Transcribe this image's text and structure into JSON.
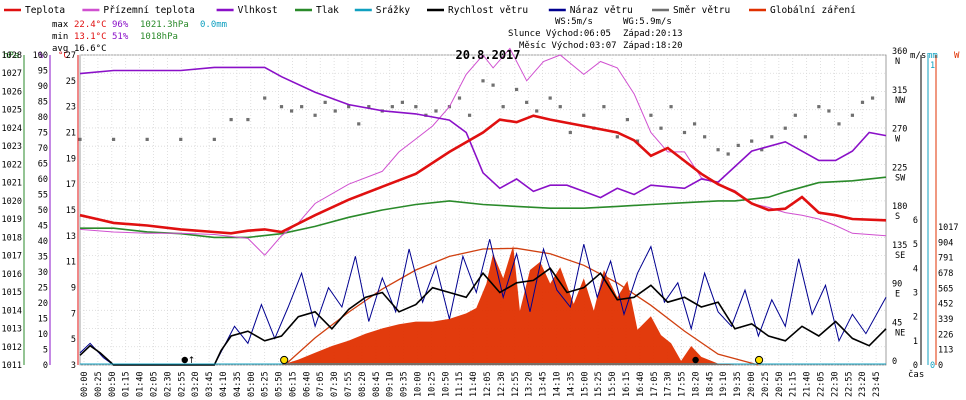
{
  "chart_data": {
    "type": "line",
    "title": "20.8.2017",
    "legend": [
      {
        "name": "Teplota",
        "color": "#e01010"
      },
      {
        "name": "Přízemní teplota",
        "color": "#d050d0"
      },
      {
        "name": "Vlhkost",
        "color": "#8a10c8"
      },
      {
        "name": "Tlak",
        "color": "#2a8a2a"
      },
      {
        "name": "Srážky",
        "color": "#10a0c0"
      },
      {
        "name": "Rychlost větru",
        "color": "#000000"
      },
      {
        "name": "Náraz větru",
        "color": "#000090"
      },
      {
        "name": "Směr větru",
        "color": "#707070"
      },
      {
        "name": "Globální záření",
        "color": "#e03000"
      }
    ],
    "stats": {
      "max": {
        "label": "max",
        "temp": "22.4°C",
        "hum": "96%",
        "press": "1021.3hPa",
        "rain": "0.0mm"
      },
      "min": {
        "label": "min",
        "temp": "13.1°C",
        "hum": "51%",
        "press": "1018hPa"
      },
      "avg": {
        "label": "avg",
        "temp": "16.6°C"
      }
    },
    "info": {
      "ws": "WS:5m/s",
      "wg": "WG:5.9m/s",
      "sun": "Slunce Východ:06:05",
      "sun_set": "Západ:20:13",
      "moon": "Měsíc Východ:03:07",
      "moon_set": "Západ:18:20"
    },
    "axis_units": {
      "press": "hPa",
      "hum": "%",
      "temp": "°C",
      "wind": "m/s",
      "rain": "mm",
      "rad": "W",
      "x": "čas"
    },
    "axes": {
      "press": {
        "range": [
          1011,
          1028
        ],
        "ticks": [
          1011,
          1012,
          1013,
          1014,
          1015,
          1016,
          1017,
          1018,
          1019,
          1020,
          1021,
          1022,
          1023,
          1024,
          1025,
          1026,
          1027,
          1028
        ]
      },
      "hum": {
        "range": [
          0,
          100
        ],
        "ticks": [
          0,
          5,
          10,
          15,
          20,
          25,
          30,
          35,
          40,
          45,
          50,
          55,
          60,
          65,
          70,
          75,
          80,
          85,
          90,
          95,
          100
        ]
      },
      "temp": {
        "range": [
          3,
          27
        ],
        "ticks": [
          3,
          5,
          7,
          9,
          11,
          13,
          15,
          17,
          19,
          21,
          23,
          25,
          27
        ]
      },
      "dir": {
        "range": [
          0,
          360
        ],
        "ticks": [
          {
            "deg": 360,
            "label": "360",
            "card": "N"
          },
          {
            "deg": 315,
            "label": "315",
            "card": "NW"
          },
          {
            "deg": 270,
            "label": "270",
            "card": "W"
          },
          {
            "deg": 225,
            "label": "225",
            "card": "SW"
          },
          {
            "deg": 180,
            "label": "180",
            "card": "S"
          },
          {
            "deg": 135,
            "label": "135",
            "card": "SE"
          },
          {
            "deg": 90,
            "label": "90",
            "card": "E"
          },
          {
            "deg": 45,
            "label": "45",
            "card": "NE"
          },
          {
            "deg": 0,
            "label": "0",
            "card": ""
          }
        ]
      },
      "wind": {
        "range": [
          0,
          6
        ],
        "ticks": [
          0,
          1,
          2,
          3,
          4,
          5,
          6
        ]
      },
      "rain": {
        "range": [
          0,
          1
        ],
        "ticks": [
          0,
          1
        ]
      },
      "rad": {
        "range": [
          0,
          1017
        ],
        "ticks": [
          0,
          113,
          226,
          339,
          452,
          565,
          678,
          791,
          904,
          1017
        ]
      }
    },
    "x_ticks": [
      "00:00",
      "00:25",
      "00:50",
      "01:15",
      "01:40",
      "02:05",
      "02:30",
      "02:55",
      "03:20",
      "03:45",
      "04:10",
      "04:35",
      "05:00",
      "05:25",
      "05:50",
      "06:15",
      "06:40",
      "07:05",
      "07:30",
      "07:55",
      "08:20",
      "08:45",
      "09:10",
      "09:35",
      "10:00",
      "10:25",
      "10:50",
      "11:15",
      "11:40",
      "12:05",
      "12:30",
      "12:55",
      "13:20",
      "13:45",
      "14:10",
      "14:35",
      "15:00",
      "15:25",
      "15:50",
      "16:15",
      "16:40",
      "17:05",
      "17:30",
      "17:55",
      "18:20",
      "18:45",
      "19:10",
      "19:35",
      "20:00",
      "20:25",
      "20:50",
      "21:15",
      "21:40",
      "22:05",
      "22:30",
      "22:55",
      "23:20",
      "23:45"
    ],
    "series": [
      {
        "key": "temp",
        "axis": "temp",
        "x": [
          0,
          0.5,
          1,
          2,
          3,
          4,
          4.5,
          5,
          5.5,
          6,
          7,
          8,
          9,
          10,
          11,
          12,
          12.5,
          13,
          13.5,
          14,
          15,
          16,
          16.5,
          17,
          17.5,
          18,
          18.5,
          19,
          19.5,
          20,
          20.5,
          21,
          21.5,
          22,
          22.5,
          23,
          24
        ],
        "y": [
          14.6,
          14.3,
          14.0,
          13.8,
          13.5,
          13.3,
          13.2,
          13.4,
          13.5,
          13.3,
          14.6,
          15.8,
          16.8,
          17.8,
          19.5,
          21.0,
          22.0,
          21.8,
          22.3,
          22.0,
          21.5,
          21.0,
          20.4,
          19.2,
          19.8,
          18.8,
          17.8,
          17.0,
          16.4,
          15.5,
          15.0,
          15.1,
          16.0,
          14.8,
          14.6,
          14.3,
          14.2
        ]
      },
      {
        "key": "hum",
        "axis": "hum",
        "x": [
          0,
          1,
          2,
          3,
          4,
          5,
          5.5,
          6,
          7,
          8,
          9,
          10,
          11,
          11.5,
          12,
          12.5,
          13,
          13.5,
          14,
          14.5,
          15,
          15.5,
          16,
          16.5,
          17,
          18,
          18.5,
          19,
          20,
          21,
          22,
          22.5,
          23,
          23.5,
          24
        ],
        "y": [
          94,
          95,
          95,
          95,
          96,
          96,
          96,
          93,
          88,
          84,
          82,
          81,
          79,
          75,
          62,
          57,
          60,
          56,
          58,
          58,
          56,
          54,
          57,
          55,
          58,
          57,
          60,
          59,
          69,
          72,
          66,
          66,
          69,
          75,
          74
        ]
      },
      {
        "key": "ground",
        "axis": "temp",
        "x": [
          0,
          1,
          2,
          3,
          4,
          5,
          5.5,
          6,
          6.5,
          7,
          8,
          9,
          9.5,
          10,
          10.5,
          11,
          11.5,
          12,
          12.3,
          12.8,
          13.3,
          13.8,
          14.3,
          15,
          15.5,
          16,
          16.5,
          17,
          17.5,
          18,
          18.5,
          19,
          19.5,
          20,
          20.5,
          21,
          21.5,
          22,
          22.5,
          23,
          24
        ],
        "y": [
          13.5,
          13.3,
          13.2,
          13.2,
          13.1,
          12.8,
          11.5,
          13.0,
          14.0,
          15.5,
          17.0,
          18.0,
          19.5,
          20.5,
          21.5,
          23.0,
          25.5,
          27.0,
          26.0,
          27.5,
          25.0,
          26.5,
          27.0,
          25.5,
          26.5,
          26.0,
          24.0,
          21.0,
          19.5,
          19.5,
          17.5,
          17.0,
          16.5,
          15.5,
          15.2,
          14.8,
          14.6,
          14.3,
          13.8,
          13.2,
          13.0
        ]
      },
      {
        "key": "press",
        "axis": "press",
        "x": [
          0,
          1,
          2,
          3,
          4,
          5,
          6,
          7,
          8,
          9,
          10,
          11,
          12,
          13,
          14,
          15,
          16,
          17,
          18,
          19,
          19.5,
          20,
          20.5,
          21,
          22,
          23,
          24
        ],
        "y": [
          1018.5,
          1018.5,
          1018.3,
          1018.2,
          1018.0,
          1018.0,
          1018.2,
          1018.6,
          1019.1,
          1019.5,
          1019.8,
          1020.0,
          1019.8,
          1019.7,
          1019.6,
          1019.6,
          1019.7,
          1019.8,
          1019.9,
          1020.0,
          1020.0,
          1020.1,
          1020.2,
          1020.5,
          1021.0,
          1021.1,
          1021.3
        ]
      },
      {
        "key": "radexp",
        "axis": "rad",
        "x": [
          6.1,
          7,
          8,
          9,
          10,
          11,
          12,
          13,
          14,
          15,
          16,
          17,
          18,
          19,
          20.2
        ],
        "y": [
          0,
          200,
          390,
          560,
          700,
          800,
          855,
          860,
          820,
          735,
          605,
          440,
          250,
          80,
          0
        ]
      },
      {
        "key": "rad",
        "axis": "rad",
        "x": [
          6,
          6.5,
          7,
          7.5,
          8,
          8.5,
          9,
          9.5,
          10,
          10.5,
          11,
          11.5,
          11.8,
          12.1,
          12.3,
          12.6,
          12.9,
          13.1,
          13.4,
          13.7,
          14,
          14.3,
          14.7,
          15,
          15.3,
          15.6,
          16,
          16.3,
          16.6,
          17,
          17.3,
          17.6,
          17.9,
          18.2,
          18.5,
          18.8,
          19,
          19.5,
          20.2
        ],
        "y": [
          0,
          40,
          90,
          140,
          180,
          230,
          270,
          300,
          320,
          320,
          340,
          380,
          420,
          600,
          820,
          640,
          880,
          400,
          700,
          760,
          600,
          720,
          450,
          640,
          400,
          700,
          500,
          620,
          260,
          360,
          220,
          160,
          30,
          140,
          60,
          30,
          10,
          0,
          0
        ]
      },
      {
        "key": "wind",
        "axis": "wind",
        "x": [
          0,
          0.3,
          0.6,
          1,
          2,
          3,
          4,
          4.2,
          4.5,
          5,
          5.5,
          6,
          6.5,
          7,
          7.5,
          8,
          8.5,
          9,
          9.5,
          10,
          10.5,
          11,
          11.5,
          12,
          12.5,
          13,
          13.5,
          14,
          14.5,
          15,
          15.5,
          16,
          16.5,
          17,
          17.5,
          18,
          18.5,
          19,
          19.5,
          20,
          20.5,
          21,
          21.5,
          22,
          22.5,
          23,
          23.5,
          24
        ],
        "y": [
          0.4,
          0.8,
          0.5,
          0,
          0,
          0,
          0,
          0.6,
          1.2,
          1.4,
          1.0,
          1.2,
          2.0,
          2.2,
          1.5,
          2.3,
          2.8,
          3.0,
          2.2,
          2.5,
          3.2,
          3.0,
          2.8,
          3.8,
          3.0,
          3.4,
          3.5,
          4.0,
          3.0,
          3.2,
          3.8,
          2.7,
          2.8,
          3.3,
          2.6,
          2.8,
          2.4,
          2.6,
          1.5,
          1.7,
          1.2,
          1.0,
          1.6,
          1.2,
          1.8,
          1.1,
          0.8,
          1.5
        ]
      },
      {
        "key": "gust",
        "axis": "wind",
        "x": [
          0,
          0.3,
          0.7,
          1,
          2,
          3,
          4,
          4.3,
          4.6,
          5,
          5.4,
          5.8,
          6.2,
          6.6,
          7,
          7.4,
          7.8,
          8.2,
          8.6,
          9,
          9.4,
          9.8,
          10.2,
          10.6,
          11,
          11.4,
          11.8,
          12.2,
          12.6,
          13,
          13.4,
          13.8,
          14.2,
          14.6,
          15,
          15.4,
          15.8,
          16.2,
          16.6,
          17,
          17.4,
          17.8,
          18.2,
          18.6,
          19,
          19.4,
          19.8,
          20.2,
          20.6,
          21,
          21.4,
          21.8,
          22.2,
          22.6,
          23,
          23.4,
          24
        ],
        "y": [
          0.5,
          0.9,
          0.3,
          0,
          0,
          0,
          0,
          0.8,
          1.6,
          0.9,
          2.5,
          1.1,
          2.4,
          3.8,
          1.6,
          3.2,
          2.4,
          4.5,
          1.8,
          3.6,
          2.2,
          4.8,
          2.6,
          4.1,
          1.9,
          4.5,
          3.0,
          5.2,
          2.8,
          4.6,
          2.2,
          4.8,
          3.1,
          2.4,
          5.0,
          2.8,
          4.3,
          2.1,
          3.8,
          4.9,
          2.6,
          3.4,
          1.5,
          3.8,
          2.2,
          1.6,
          3.1,
          1.2,
          2.7,
          1.6,
          4.4,
          2.1,
          3.3,
          1.0,
          2.1,
          1.3,
          2.8
        ]
      }
    ],
    "wind_dir": {
      "x": [
        0,
        1,
        2,
        3,
        4,
        4.5,
        5,
        5.5,
        6,
        6.3,
        6.6,
        7,
        7.3,
        7.6,
        8,
        8.3,
        8.6,
        9,
        9.3,
        9.6,
        10,
        10.3,
        10.6,
        11,
        11.3,
        11.6,
        12,
        12.3,
        12.6,
        13,
        13.3,
        13.6,
        14,
        14.3,
        14.6,
        15,
        15.3,
        15.6,
        16,
        16.3,
        16.6,
        17,
        17.3,
        17.6,
        18,
        18.3,
        18.6,
        19,
        19.3,
        19.6,
        20,
        20.3,
        20.6,
        21,
        21.3,
        21.6,
        22,
        22.3,
        22.6,
        23,
        23.3,
        23.6
      ],
      "y": [
        262,
        262,
        262,
        262,
        262,
        285,
        285,
        310,
        300,
        295,
        300,
        290,
        305,
        295,
        300,
        280,
        300,
        295,
        300,
        305,
        300,
        290,
        295,
        300,
        310,
        290,
        330,
        325,
        300,
        320,
        305,
        295,
        310,
        300,
        270,
        290,
        275,
        300,
        265,
        285,
        260,
        290,
        275,
        300,
        270,
        280,
        265,
        250,
        245,
        255,
        260,
        250,
        265,
        275,
        290,
        265,
        300,
        295,
        280,
        290,
        305,
        310
      ]
    },
    "markers": [
      {
        "kind": "moonrise",
        "time": 3.12
      },
      {
        "kind": "sunrise",
        "time": 6.08
      },
      {
        "kind": "moonset",
        "time": 18.33
      },
      {
        "kind": "sunset",
        "time": 20.22
      }
    ]
  }
}
